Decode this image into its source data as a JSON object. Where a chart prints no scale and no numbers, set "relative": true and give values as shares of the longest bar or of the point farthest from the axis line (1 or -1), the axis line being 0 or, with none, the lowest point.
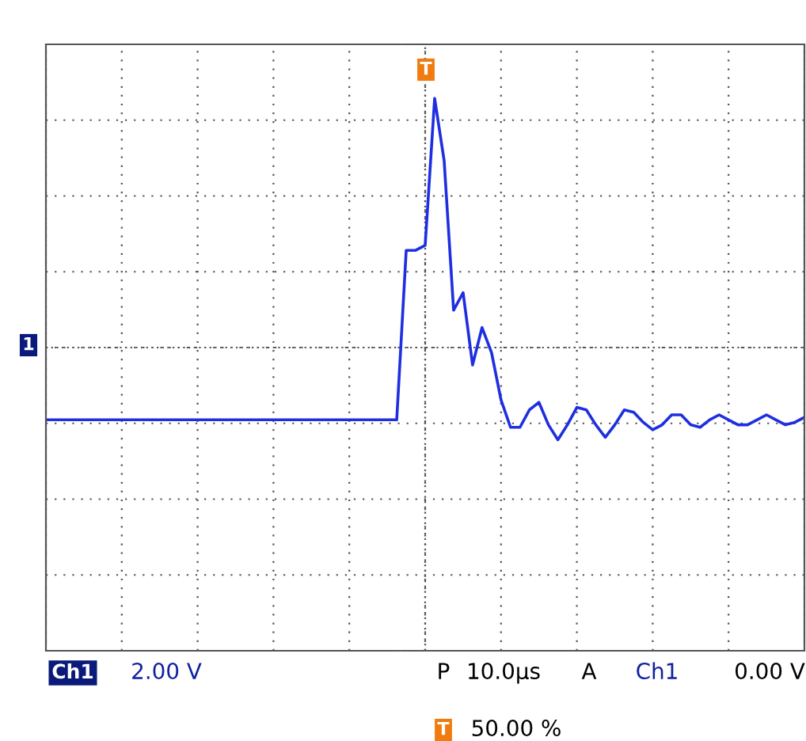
{
  "chart_data": {
    "type": "line",
    "relative": true,
    "grid": true,
    "legend": false,
    "marker": "none",
    "line_style": "solid",
    "categories": [
      null,
      null,
      null,
      null,
      null,
      null,
      null,
      null,
      null,
      null,
      null,
      null,
      null,
      null,
      null,
      null,
      null,
      null,
      null,
      null,
      null,
      null,
      null,
      null,
      null,
      null,
      null,
      null,
      null,
      null,
      null,
      null,
      null,
      null,
      null,
      null,
      null,
      null,
      null,
      null,
      null,
      null,
      null,
      null,
      null,
      null,
      null,
      null,
      null,
      null,
      null,
      null,
      null,
      null,
      null,
      null,
      null,
      null,
      null,
      null,
      null,
      null,
      null,
      null,
      null,
      null,
      null,
      null,
      null,
      null,
      null,
      null,
      null,
      null,
      null,
      null,
      null,
      null,
      null,
      null,
      null
    ],
    "series": [
      {
        "color": "#1f2fe0",
        "values": [
          -0.29,
          -0.29,
          -0.29,
          -0.29,
          -0.29,
          -0.29,
          -0.29,
          -0.29,
          -0.29,
          -0.29,
          -0.29,
          -0.29,
          -0.29,
          -0.29,
          -0.29,
          -0.29,
          -0.29,
          -0.29,
          -0.29,
          -0.29,
          -0.29,
          -0.29,
          -0.29,
          -0.29,
          -0.29,
          -0.29,
          -0.29,
          -0.29,
          -0.29,
          -0.29,
          -0.29,
          -0.29,
          -0.29,
          -0.29,
          -0.29,
          -0.29,
          -0.29,
          -0.29,
          0.39,
          0.39,
          0.41,
          1.0,
          0.75,
          0.15,
          0.22,
          -0.07,
          0.08,
          -0.02,
          -0.21,
          -0.32,
          -0.32,
          -0.25,
          -0.22,
          -0.31,
          -0.37,
          -0.31,
          -0.24,
          -0.25,
          -0.31,
          -0.36,
          -0.31,
          -0.25,
          -0.26,
          -0.3,
          -0.33,
          -0.31,
          -0.27,
          -0.27,
          -0.31,
          -0.32,
          -0.29,
          -0.27,
          -0.29,
          -0.31,
          -0.31,
          -0.29,
          -0.27,
          -0.29,
          -0.31,
          -0.3,
          -0.28
        ]
      }
    ],
    "annotations": [
      "T",
      "1",
      "Ch1",
      "2.00 V",
      "P",
      "10.0µs",
      "A",
      "Ch1",
      "0.00 V",
      "T",
      "50.00 %"
    ]
  }
}
